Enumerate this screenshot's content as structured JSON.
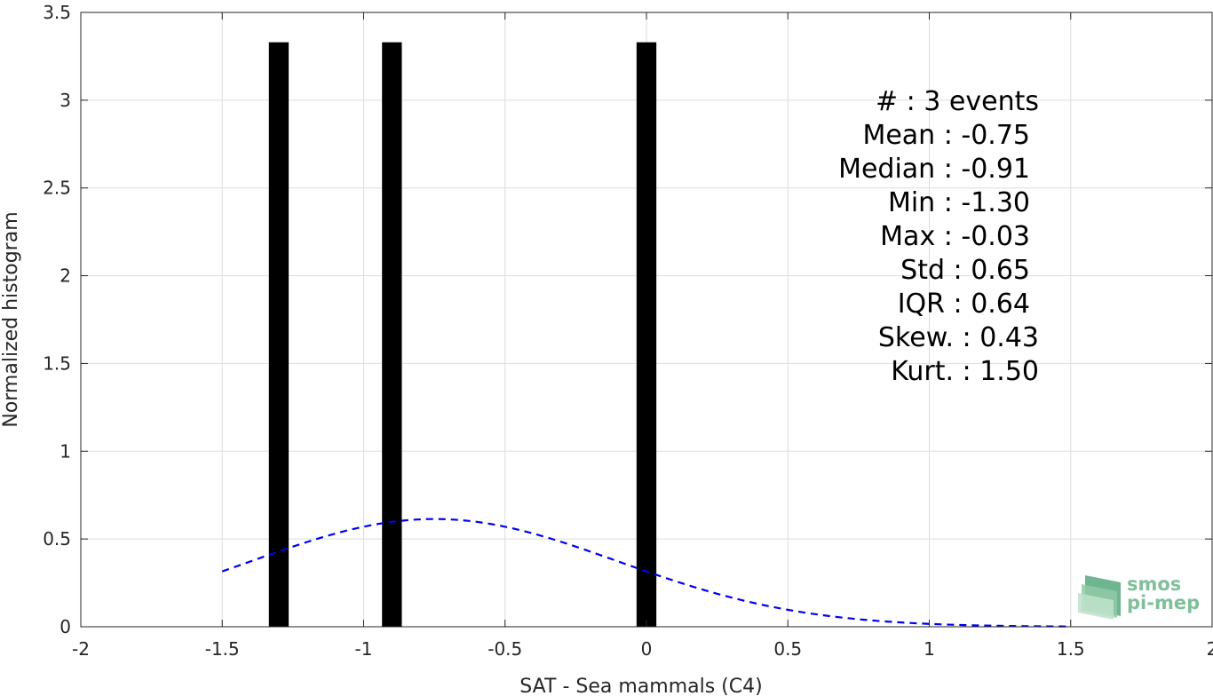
{
  "chart_data": {
    "type": "bar",
    "xlabel": "SAT - Sea mammals (C4)",
    "ylabel": "Normalized histogram",
    "xlim": [
      -2,
      2
    ],
    "ylim": [
      0,
      3.5
    ],
    "x_ticks": [
      -2,
      -1.5,
      -1,
      -0.5,
      0,
      0.5,
      1,
      1.5,
      2
    ],
    "x_tick_labels": [
      "-2",
      "-1.5",
      "-1",
      "-0.5",
      "0",
      "0.5",
      "1",
      "1.5",
      "2"
    ],
    "y_ticks": [
      0,
      0.5,
      1,
      1.5,
      2,
      2.5,
      3,
      3.5
    ],
    "y_tick_labels": [
      "0",
      "0.5",
      "1",
      "1.5",
      "2",
      "2.5",
      "3",
      "3.5"
    ],
    "grid": true,
    "bars": {
      "x": [
        -1.3,
        -0.9,
        0.0
      ],
      "width": 0.07,
      "values": [
        3.33,
        3.33,
        3.33
      ],
      "color": "#000000"
    },
    "fit_curve": {
      "style": "dashed",
      "color": "#0000ee",
      "distribution": "normal",
      "mean": -0.75,
      "std": 0.65,
      "x_range": [
        -1.5,
        1.5
      ]
    },
    "stats_text": [
      "#  : 3 events",
      "Mean : -0.75",
      "Median : -0.91",
      "Min : -1.30",
      "Max : -0.03",
      "Std : 0.65",
      "IQR : 0.64",
      "Skew. : 0.43",
      "Kurt. : 1.50"
    ]
  },
  "logo": {
    "line1": "smos",
    "line2": "pi-mep",
    "color": "#7fbf9a"
  }
}
